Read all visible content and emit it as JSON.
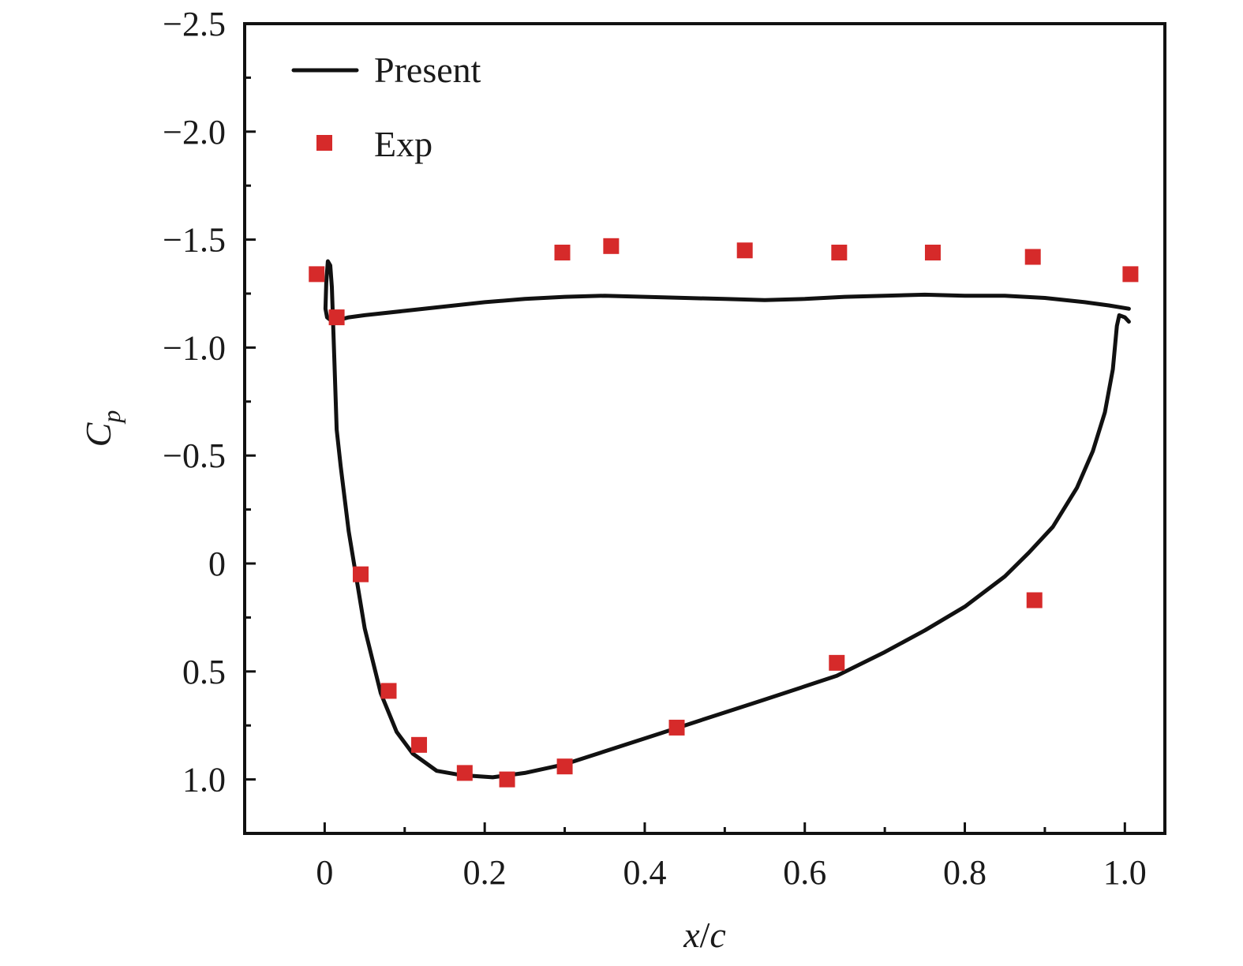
{
  "chart_data": {
    "type": "line",
    "xlabel_var": "x",
    "xlabel_sep": "/",
    "xlabel_den": "c",
    "ylabel_main": "C",
    "ylabel_sub": "p",
    "xlim": [
      -0.1,
      1.05
    ],
    "ylim": [
      1.25,
      -2.5
    ],
    "y_inverted": true,
    "x_ticks": [
      {
        "v": 0,
        "label": "0"
      },
      {
        "v": 0.2,
        "label": "0.2"
      },
      {
        "v": 0.4,
        "label": "0.4"
      },
      {
        "v": 0.6,
        "label": "0.6"
      },
      {
        "v": 0.8,
        "label": "0.8"
      },
      {
        "v": 1.0,
        "label": "1.0"
      }
    ],
    "y_ticks": [
      {
        "v": -2.5,
        "label": "−2.5"
      },
      {
        "v": -2.0,
        "label": "−2.0"
      },
      {
        "v": -1.5,
        "label": "−1.5"
      },
      {
        "v": -1.0,
        "label": "−1.0"
      },
      {
        "v": -0.5,
        "label": "−0.5"
      },
      {
        "v": 0,
        "label": "0"
      },
      {
        "v": 0.5,
        "label": "0.5"
      },
      {
        "v": 1.0,
        "label": "1.0"
      }
    ],
    "legend_position": "top-left",
    "series": [
      {
        "name": "Present",
        "kind": "line",
        "color": "#111111",
        "points": [
          [
            1.005,
            -1.12
          ],
          [
            1.0,
            -1.14
          ],
          [
            0.993,
            -1.15
          ],
          [
            0.99,
            -1.1
          ],
          [
            0.985,
            -0.9
          ],
          [
            0.975,
            -0.7
          ],
          [
            0.96,
            -0.52
          ],
          [
            0.94,
            -0.35
          ],
          [
            0.91,
            -0.17
          ],
          [
            0.88,
            -0.05
          ],
          [
            0.85,
            0.06
          ],
          [
            0.8,
            0.2
          ],
          [
            0.75,
            0.31
          ],
          [
            0.7,
            0.41
          ],
          [
            0.64,
            0.52
          ],
          [
            0.55,
            0.63
          ],
          [
            0.45,
            0.75
          ],
          [
            0.35,
            0.87
          ],
          [
            0.3,
            0.93
          ],
          [
            0.25,
            0.97
          ],
          [
            0.21,
            0.99
          ],
          [
            0.17,
            0.98
          ],
          [
            0.14,
            0.96
          ],
          [
            0.11,
            0.88
          ],
          [
            0.09,
            0.78
          ],
          [
            0.07,
            0.6
          ],
          [
            0.05,
            0.3
          ],
          [
            0.03,
            -0.15
          ],
          [
            0.02,
            -0.45
          ],
          [
            0.015,
            -0.62
          ],
          [
            0.012,
            -0.95
          ],
          [
            0.009,
            -1.28
          ],
          [
            0.007,
            -1.38
          ],
          [
            0.004,
            -1.4
          ],
          [
            0.002,
            -1.3
          ],
          [
            0.001,
            -1.18
          ],
          [
            0.003,
            -1.14
          ],
          [
            0.01,
            -1.12
          ],
          [
            0.03,
            -1.14
          ],
          [
            0.05,
            -1.15
          ],
          [
            0.1,
            -1.17
          ],
          [
            0.15,
            -1.19
          ],
          [
            0.2,
            -1.21
          ],
          [
            0.25,
            -1.225
          ],
          [
            0.3,
            -1.235
          ],
          [
            0.35,
            -1.24
          ],
          [
            0.4,
            -1.235
          ],
          [
            0.45,
            -1.23
          ],
          [
            0.5,
            -1.225
          ],
          [
            0.55,
            -1.22
          ],
          [
            0.6,
            -1.225
          ],
          [
            0.65,
            -1.235
          ],
          [
            0.7,
            -1.24
          ],
          [
            0.75,
            -1.245
          ],
          [
            0.8,
            -1.24
          ],
          [
            0.85,
            -1.24
          ],
          [
            0.9,
            -1.23
          ],
          [
            0.95,
            -1.21
          ],
          [
            0.98,
            -1.195
          ],
          [
            1.005,
            -1.18
          ]
        ]
      },
      {
        "name": "Exp",
        "kind": "scatter",
        "color": "#d62a2a",
        "points": [
          [
            -0.01,
            -1.34
          ],
          [
            0.015,
            -1.14
          ],
          [
            0.045,
            0.05
          ],
          [
            0.08,
            0.59
          ],
          [
            0.118,
            0.84
          ],
          [
            0.175,
            0.97
          ],
          [
            0.228,
            1.0
          ],
          [
            0.3,
            0.94
          ],
          [
            0.297,
            -1.44
          ],
          [
            0.358,
            -1.47
          ],
          [
            0.44,
            0.76
          ],
          [
            0.525,
            -1.45
          ],
          [
            0.643,
            -1.44
          ],
          [
            0.64,
            0.46
          ],
          [
            0.76,
            -1.44
          ],
          [
            0.885,
            -1.42
          ],
          [
            0.887,
            0.17
          ],
          [
            1.007,
            -1.34
          ]
        ]
      }
    ]
  }
}
